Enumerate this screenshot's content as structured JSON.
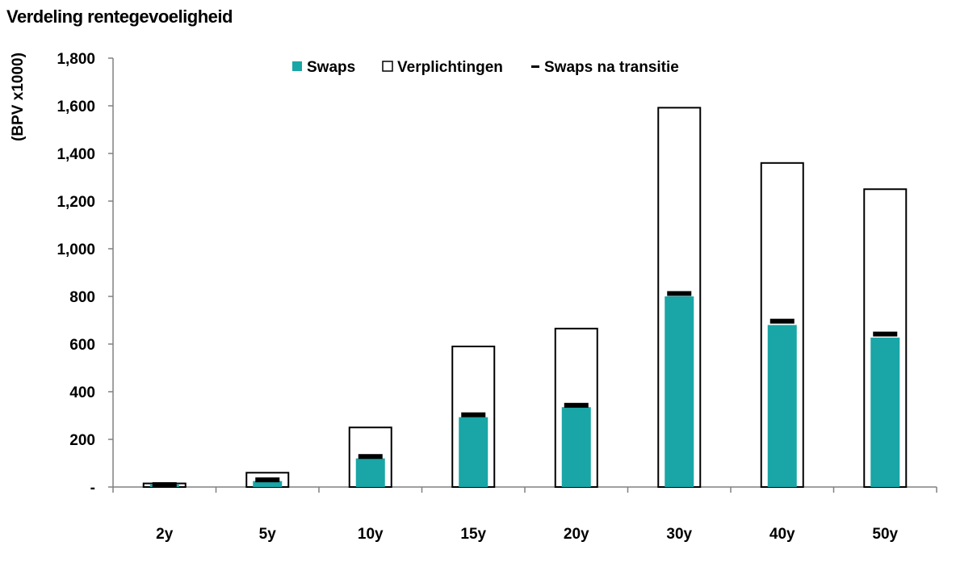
{
  "chart_data": {
    "type": "bar",
    "title": "Verdeling rentegevoeligheid",
    "ylabel": "(BPV x1000)",
    "xlabel": "",
    "categories": [
      "2y",
      "5y",
      "10y",
      "15y",
      "20y",
      "30y",
      "40y",
      "50y"
    ],
    "series": [
      {
        "name": "Swaps",
        "values": [
          10,
          25,
          120,
          293,
          335,
          800,
          680,
          627
        ],
        "color": "#1aa5a6"
      },
      {
        "name": "Verplichtingen",
        "values": [
          15,
          60,
          250,
          590,
          665,
          1592,
          1360,
          1250
        ],
        "color": "#ffffff"
      },
      {
        "name": "Swaps na transitie",
        "values": [
          10,
          30,
          128,
          303,
          343,
          812,
          696,
          642
        ],
        "color": "#000000"
      }
    ],
    "yticks": [
      {
        "value": 0,
        "label": "-"
      },
      {
        "value": 200,
        "label": "200"
      },
      {
        "value": 400,
        "label": "400"
      },
      {
        "value": 600,
        "label": "600"
      },
      {
        "value": 800,
        "label": "800"
      },
      {
        "value": 1000,
        "label": "1,000"
      },
      {
        "value": 1200,
        "label": "1,200"
      },
      {
        "value": 1400,
        "label": "1,400"
      },
      {
        "value": 1600,
        "label": "1,600"
      },
      {
        "value": 1800,
        "label": "1,800"
      }
    ],
    "ylim": [
      0,
      1800
    ],
    "grid": false,
    "legend_position": "top-center"
  }
}
